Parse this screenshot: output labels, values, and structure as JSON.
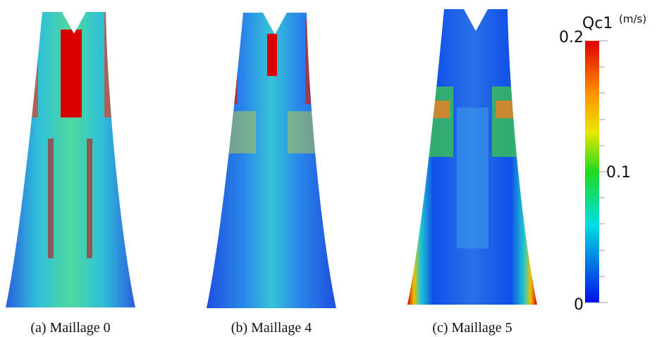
{
  "figure": {
    "panels": [
      {
        "caption": "(a) Maillage 0"
      },
      {
        "caption": "(b) Maillage 4"
      },
      {
        "caption": "(c) Maillage 5"
      }
    ],
    "colorbar": {
      "title": "Qc1",
      "unit": "(m/s)",
      "ticks": [
        "0.2",
        "0.1",
        "0"
      ]
    }
  }
}
